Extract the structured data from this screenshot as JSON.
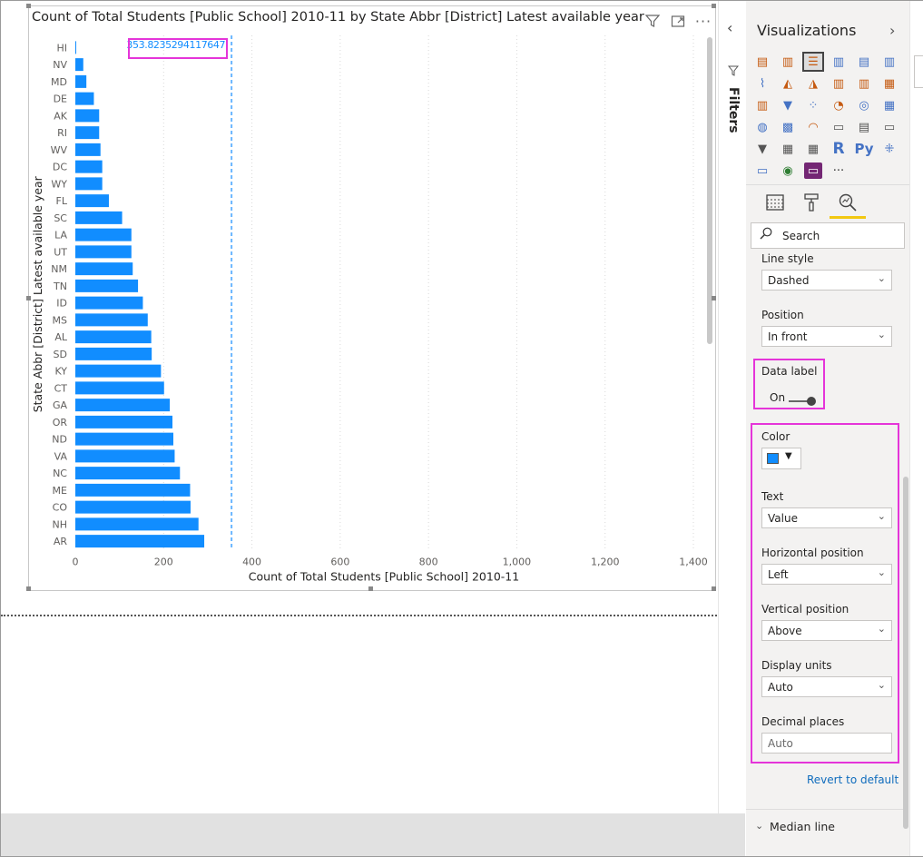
{
  "visual": {
    "title": "Count of Total Students [Public School] 2010-11 by State Abbr [District] Latest available year",
    "icons": [
      "filter-icon",
      "focus-mode-icon",
      "more-options-icon"
    ]
  },
  "chart_data": {
    "type": "bar",
    "orientation": "horizontal",
    "categories": [
      "HI",
      "NV",
      "MD",
      "DE",
      "AK",
      "RI",
      "WV",
      "DC",
      "WY",
      "FL",
      "SC",
      "LA",
      "UT",
      "NM",
      "TN",
      "ID",
      "MS",
      "AL",
      "SD",
      "KY",
      "CT",
      "GA",
      "OR",
      "ND",
      "VA",
      "NC",
      "ME",
      "CO",
      "NH",
      "AR"
    ],
    "values": [
      1,
      18,
      25,
      42,
      54,
      54,
      57,
      61,
      61,
      76,
      106,
      127,
      127,
      130,
      142,
      153,
      164,
      172,
      173,
      194,
      201,
      214,
      220,
      222,
      225,
      237,
      260,
      261,
      279,
      292
    ],
    "color": "#118dff",
    "xlabel": "Count of Total Students [Public School] 2010-11",
    "ylabel": "State Abbr [District] Latest available year",
    "xlim": [
      0,
      1400
    ],
    "xticks": [
      "0",
      "200",
      "400",
      "600",
      "800",
      "1,000",
      "1,200",
      "1,400"
    ],
    "reference_line": {
      "value": 353.8235294117647,
      "label": "353.8235294117647",
      "style": "dashed",
      "color": "#6ab6ff"
    },
    "grid": "vertical dotted"
  },
  "side": {
    "filters_label": "Filters"
  },
  "pane": {
    "title": "Visualizations",
    "search_placeholder": "Search",
    "line_style": {
      "label": "Line style",
      "value": "Dashed"
    },
    "position": {
      "label": "Position",
      "value": "In front"
    },
    "data_label": {
      "label": "Data label",
      "toggle_text": "On"
    },
    "color": {
      "label": "Color",
      "value": "#118dff"
    },
    "text": {
      "label": "Text",
      "value": "Value"
    },
    "horizontal_position": {
      "label": "Horizontal position",
      "value": "Left"
    },
    "vertical_position": {
      "label": "Vertical position",
      "value": "Above"
    },
    "display_units": {
      "label": "Display units",
      "value": "Auto"
    },
    "decimal_places": {
      "label": "Decimal places",
      "placeholder": "Auto"
    },
    "revert": "Revert to default",
    "median_line": "Median line"
  }
}
